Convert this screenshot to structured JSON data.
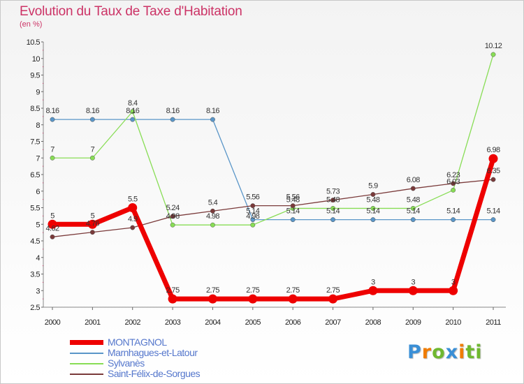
{
  "title": "Evolution du Taux de Taxe d'Habitation",
  "subtitle": "(en %)",
  "logo": "Proxiti",
  "chart_data": {
    "type": "line",
    "title": "Evolution du Taux de Taxe d'Habitation",
    "ylabel": "(en %)",
    "categories": [
      "2000",
      "2001",
      "2002",
      "2003",
      "2004",
      "2005",
      "2006",
      "2007",
      "2008",
      "2009",
      "2010",
      "2011"
    ],
    "ylim": [
      2.5,
      10.5
    ],
    "yticks": [
      "2.5",
      "3",
      "3.5",
      "4",
      "4.5",
      "5",
      "5.5",
      "6",
      "6.5",
      "7",
      "7.5",
      "8",
      "8.5",
      "9",
      "9.5",
      "10",
      "10.5"
    ],
    "grid": false,
    "legend_position": "bottom-left",
    "series": [
      {
        "name": "MONTAGNOL",
        "color": "#ee0000",
        "values": [
          5,
          5,
          5.5,
          2.75,
          2.75,
          2.75,
          2.75,
          2.75,
          3,
          3,
          3,
          6.98
        ],
        "labels": [
          "5",
          "5",
          "5.5",
          "2.75",
          "2.75",
          "2.75",
          "2.75",
          "2.75",
          "3",
          "3",
          "3",
          "6.98"
        ]
      },
      {
        "name": "Marnhagues-et-Latour",
        "color": "#5a96c8",
        "values": [
          8.16,
          8.16,
          8.16,
          8.16,
          8.16,
          5.14,
          5.14,
          5.14,
          5.14,
          5.14,
          5.14,
          5.14
        ],
        "labels": [
          "8.16",
          "8.16",
          "8.16",
          "8.16",
          "8.16",
          "5.14",
          "5.14",
          "5.14",
          "5.14",
          "5.14",
          "5.14",
          "5.14"
        ]
      },
      {
        "name": "Sylvanès",
        "color": "#88dd55",
        "values": [
          7,
          7,
          8.4,
          4.98,
          4.98,
          4.98,
          5.48,
          5.48,
          5.48,
          5.48,
          6.03,
          10.12
        ],
        "labels": [
          "7",
          "7",
          "8.4",
          "4.98",
          "4.98",
          "4.98",
          "5.48",
          "5.48",
          "5.48",
          "5.48",
          "6.03",
          "10.12"
        ]
      },
      {
        "name": "Saint-Félix-de-Sorgues",
        "color": "#7a3a3a",
        "values": [
          4.62,
          4.76,
          4.9,
          5.24,
          5.4,
          5.56,
          5.56,
          5.73,
          5.9,
          6.08,
          6.23,
          6.35
        ],
        "labels": [
          "4.62",
          "4.76",
          "4.9",
          "5.24",
          "5.4",
          "5.56",
          "5.56",
          "5.73",
          "5.9",
          "6.08",
          "6.23",
          "6.35"
        ]
      }
    ]
  }
}
